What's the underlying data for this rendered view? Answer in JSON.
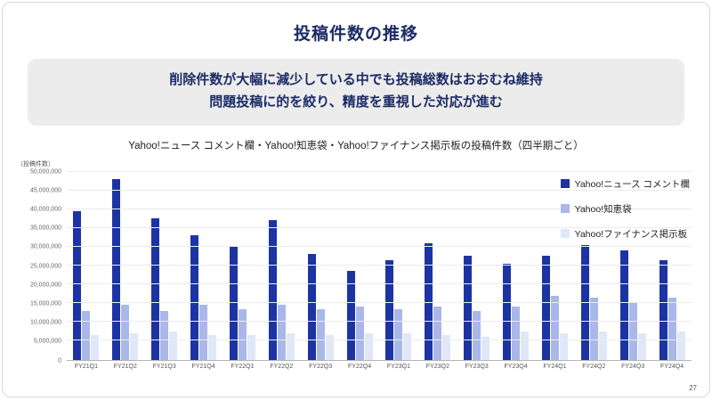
{
  "slide": {
    "title": "投稿件数の推移",
    "message_line1": "削除件数が大幅に減少している中でも投稿総数はおおむね維持",
    "message_line2": "問題投稿に的を絞り、精度を重視した対応が進む",
    "page_number": "27"
  },
  "chart_data": {
    "type": "bar",
    "title": "Yahoo!ニュース コメント欄・Yahoo!知恵袋・Yahoo!ファイナンス掲示板の投稿件数（四半期ごと）",
    "y_axis_unit_label": "（投稿件数）",
    "ylim": [
      0,
      50000000
    ],
    "ytick_step": 5000000,
    "grid": true,
    "legend_position": "top-right",
    "categories": [
      "FY21Q1",
      "FY21Q2",
      "FY21Q3",
      "FY21Q4",
      "FY22Q1",
      "FY22Q2",
      "FY22Q3",
      "FY22Q4",
      "FY23Q1",
      "FY23Q2",
      "FY23Q3",
      "FY23Q4",
      "FY24Q1",
      "FY24Q2",
      "FY24Q3",
      "FY24Q4"
    ],
    "series": [
      {
        "name": "Yahoo!ニュース コメント欄",
        "color": "#1c34a3",
        "values": [
          39500000,
          48000000,
          37500000,
          33000000,
          30000000,
          37000000,
          28000000,
          23500000,
          26500000,
          31000000,
          27500000,
          25500000,
          27500000,
          30500000,
          29000000,
          26500000
        ]
      },
      {
        "name": "Yahoo!知恵袋",
        "color": "#aab7e9",
        "values": [
          13000000,
          14500000,
          13000000,
          14500000,
          13500000,
          14500000,
          13500000,
          14000000,
          13500000,
          14000000,
          13000000,
          14000000,
          17000000,
          16500000,
          15000000,
          16500000
        ]
      },
      {
        "name": "Yahoo!ファイナンス掲示板",
        "color": "#dfe7f9",
        "values": [
          6500000,
          7000000,
          7500000,
          6500000,
          6500000,
          7000000,
          6500000,
          7000000,
          7000000,
          6500000,
          6000000,
          7500000,
          7000000,
          7500000,
          7000000,
          7500000
        ]
      }
    ]
  }
}
